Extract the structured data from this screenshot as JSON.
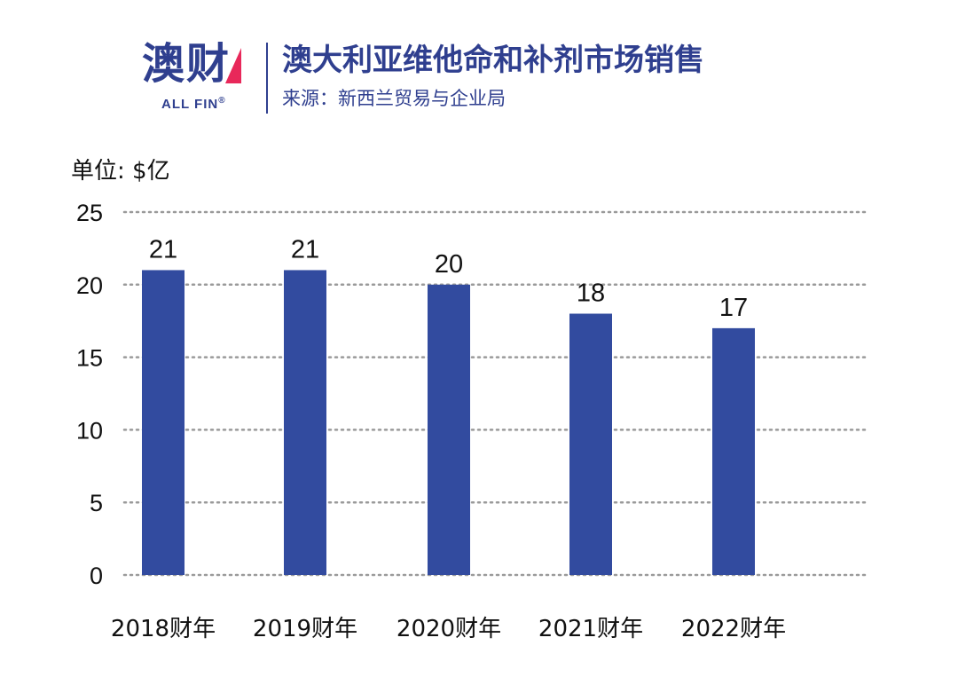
{
  "brand": {
    "name": "澳财",
    "sub": "ALL FIN",
    "reg": "®"
  },
  "header": {
    "title": "澳大利亚维他命和补剂市场销售",
    "source": "来源：新西兰贸易与企业局"
  },
  "colors": {
    "bar": "#324b9f",
    "brand": "#2f3f8f",
    "grid": "#9a9a9a"
  },
  "chart_data": {
    "type": "bar",
    "unit_label": "单位: $亿",
    "categories": [
      "2018财年",
      "2019财年",
      "2020财年",
      "2021财年",
      "2022财年"
    ],
    "values": [
      21,
      21,
      20,
      18,
      17
    ],
    "data_labels": [
      "21",
      "21",
      "20",
      "18",
      "17"
    ],
    "ylim": [
      0,
      25
    ],
    "yticks": [
      0,
      5,
      10,
      15,
      20,
      25
    ],
    "grid": true,
    "legend": "none"
  }
}
